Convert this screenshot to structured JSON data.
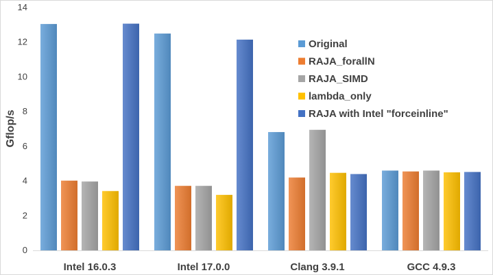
{
  "chart_data": {
    "type": "bar",
    "title": "",
    "xlabel": "",
    "ylabel": "Gflop/s",
    "ylim": [
      0,
      14
    ],
    "yticks": [
      0,
      2,
      4,
      6,
      8,
      10,
      12,
      14
    ],
    "grid": false,
    "legend_position": "right",
    "categories": [
      "Intel 16.0.3",
      "Intel 17.0.0",
      "Clang 3.9.1",
      "GCC 4.9.3"
    ],
    "series": [
      {
        "name": "Original",
        "color": "#5B9BD5",
        "values": [
          13.05,
          12.5,
          6.82,
          4.6
        ]
      },
      {
        "name": "RAJA_forallN",
        "color": "#ED7D31",
        "values": [
          4.02,
          3.72,
          4.2,
          4.55
        ]
      },
      {
        "name": "RAJA_SIMD",
        "color": "#A5A5A5",
        "values": [
          3.97,
          3.72,
          6.95,
          4.6
        ]
      },
      {
        "name": "lambda_only",
        "color": "#FFC000",
        "values": [
          3.42,
          3.2,
          4.47,
          4.5
        ]
      },
      {
        "name": "RAJA with Intel \"forceinline\"",
        "color": "#4472C4",
        "values": [
          13.07,
          12.15,
          4.4,
          4.52
        ]
      }
    ]
  }
}
